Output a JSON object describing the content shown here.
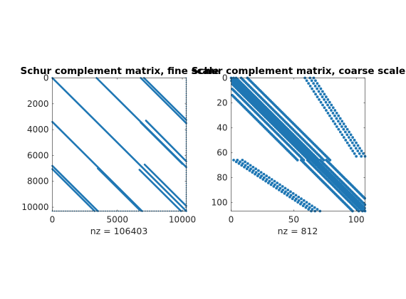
{
  "chart_data": [
    {
      "type": "scatter",
      "title": "Schur complement matrix, fine scale",
      "xlabel": "nz = 106403",
      "xlim": [
        0,
        10300
      ],
      "ylim": [
        0,
        10300
      ],
      "y_reversed": true,
      "xticks": [
        0,
        5000,
        10000
      ],
      "yticks": [
        0,
        2000,
        4000,
        6000,
        8000,
        10000
      ],
      "xtick_labels": [
        "0",
        "5000",
        "10000"
      ],
      "ytick_labels": [
        "0",
        "2000",
        "4000",
        "6000",
        "8000",
        "10000"
      ],
      "marker_color": "#1f77b4",
      "diagonal_bands": [
        {
          "x": [
            0,
            10300
          ],
          "y": [
            0,
            10300
          ]
        },
        {
          "x": [
            3400,
            10300
          ],
          "y": [
            0,
            6900
          ]
        },
        {
          "x": [
            6800,
            10300
          ],
          "y": [
            0,
            3500
          ]
        },
        {
          "x": [
            7050,
            10300
          ],
          "y": [
            0,
            3250
          ]
        },
        {
          "x": [
            0,
            6900
          ],
          "y": [
            3400,
            10300
          ]
        },
        {
          "x": [
            0,
            3500
          ],
          "y": [
            6800,
            10300
          ]
        },
        {
          "x": [
            0,
            3250
          ],
          "y": [
            7050,
            10300
          ]
        },
        {
          "x": [
            7200,
            10300
          ],
          "y": [
            3300,
            6450
          ]
        },
        {
          "x": [
            3500,
            6700
          ],
          "y": [
            7000,
            10200
          ]
        },
        {
          "x": [
            6800,
            10000
          ],
          "y": [
            3450,
            6650
          ]
        },
        {
          "x": [
            7100,
            10300
          ],
          "y": [
            6700,
            9900
          ]
        },
        {
          "x": [
            6700,
            9900
          ],
          "y": [
            7100,
            10300
          ]
        }
      ],
      "edge_dots": {
        "x_at": 10300,
        "y_at": 10300
      }
    },
    {
      "type": "scatter",
      "title": "Schur complement matrix, coarse scale",
      "xlabel": "nz = 812",
      "xlim": [
        0,
        107
      ],
      "ylim": [
        0,
        107
      ],
      "y_reversed": true,
      "xticks": [
        0,
        50,
        100
      ],
      "yticks": [
        0,
        20,
        40,
        60,
        80,
        100
      ],
      "xtick_labels": [
        "0",
        "50",
        "100"
      ],
      "ytick_labels": [
        "0",
        "20",
        "40",
        "60",
        "80",
        "100"
      ],
      "marker_color": "#1f77b4",
      "dot_bands": [
        {
          "x0": 0,
          "y0": 0,
          "x1": 107,
          "y1": 107,
          "step": 1.1,
          "offsets": [
            -2,
            0,
            2
          ]
        },
        {
          "x0": 0,
          "y0": 0,
          "x1": 66,
          "y1": 66,
          "step": 1.4,
          "offsets": [
            4,
            8,
            13
          ]
        },
        {
          "x0": 0,
          "y0": 0,
          "x1": 66,
          "y1": 66,
          "step": 1.4,
          "offsets": [
            -4,
            -8,
            -13
          ]
        },
        {
          "x0": 66,
          "y0": 0,
          "x1": 107,
          "y1": 63,
          "step": 2.6,
          "offsets": [
            0,
            -3,
            -7
          ]
        },
        {
          "x0": 2,
          "y0": 66,
          "x1": 64,
          "y1": 107,
          "step": 2.6,
          "offsets": [
            0,
            3,
            7
          ]
        },
        {
          "x0": 66,
          "y0": 66,
          "x1": 107,
          "y1": 107,
          "step": 1.2,
          "offsets": [
            5,
            10,
            -5,
            -10
          ]
        }
      ]
    }
  ]
}
